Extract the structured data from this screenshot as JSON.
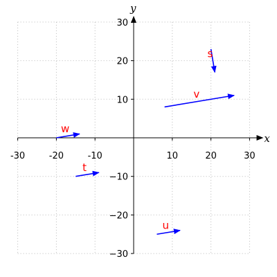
{
  "chart_data": {
    "type": "vector_field",
    "title": "",
    "xlabel": "x",
    "ylabel": "y",
    "xlim": [
      -30,
      30
    ],
    "ylim": [
      -30,
      30
    ],
    "xticks": [
      -30,
      -20,
      -10,
      10,
      20,
      30
    ],
    "yticks": [
      -30,
      -20,
      -10,
      10,
      20,
      30
    ],
    "xtick_labels": [
      "-30",
      "-20",
      "-10",
      "10",
      "20",
      "30"
    ],
    "ytick_labels": [
      "−30",
      "−20",
      "−10",
      "10",
      "20",
      "30"
    ],
    "grid": true,
    "vectors": [
      {
        "name": "s",
        "x0": 20,
        "y0": 23,
        "x1": 21,
        "y1": 17
      },
      {
        "name": "v",
        "x0": 8,
        "y0": 8,
        "x1": 26,
        "y1": 11
      },
      {
        "name": "w",
        "x0": -20,
        "y0": 0,
        "x1": -14,
        "y1": 1
      },
      {
        "name": "t",
        "x0": -15,
        "y0": -10,
        "x1": -9,
        "y1": -9
      },
      {
        "name": "u",
        "x0": 6,
        "y0": -25,
        "x1": 12,
        "y1": -24
      }
    ],
    "colors": {
      "vector": "#0000ff",
      "label": "#ff0000",
      "grid": "#b8b8b8",
      "axis": "#000000"
    }
  }
}
